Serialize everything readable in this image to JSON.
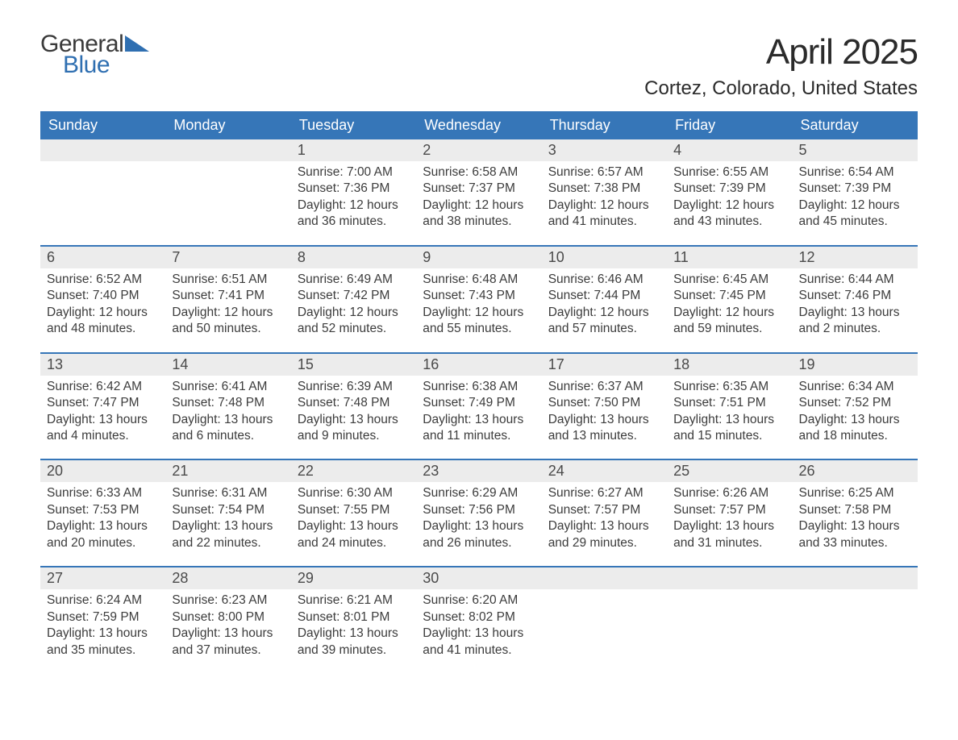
{
  "logo": {
    "word1": "General",
    "word2": "Blue",
    "accent_color": "#2f6fb1",
    "text_color": "#3a3a3a"
  },
  "title": "April 2025",
  "location": "Cortez, Colorado, United States",
  "colors": {
    "header_bg": "#3676b8",
    "header_text": "#ffffff",
    "daynum_bg": "#ececec",
    "week_divider": "#3676b8",
    "body_text": "#3c3c3c",
    "page_bg": "#ffffff"
  },
  "typography": {
    "month_title_fontsize": 44,
    "location_fontsize": 24,
    "dow_fontsize": 18,
    "daynum_fontsize": 18,
    "body_fontsize": 15.5
  },
  "days_of_week": [
    "Sunday",
    "Monday",
    "Tuesday",
    "Wednesday",
    "Thursday",
    "Friday",
    "Saturday"
  ],
  "weeks": [
    [
      {
        "n": "",
        "sunrise": "",
        "sunset": "",
        "daylight": ""
      },
      {
        "n": "",
        "sunrise": "",
        "sunset": "",
        "daylight": ""
      },
      {
        "n": "1",
        "sunrise": "Sunrise: 7:00 AM",
        "sunset": "Sunset: 7:36 PM",
        "daylight": "Daylight: 12 hours and 36 minutes."
      },
      {
        "n": "2",
        "sunrise": "Sunrise: 6:58 AM",
        "sunset": "Sunset: 7:37 PM",
        "daylight": "Daylight: 12 hours and 38 minutes."
      },
      {
        "n": "3",
        "sunrise": "Sunrise: 6:57 AM",
        "sunset": "Sunset: 7:38 PM",
        "daylight": "Daylight: 12 hours and 41 minutes."
      },
      {
        "n": "4",
        "sunrise": "Sunrise: 6:55 AM",
        "sunset": "Sunset: 7:39 PM",
        "daylight": "Daylight: 12 hours and 43 minutes."
      },
      {
        "n": "5",
        "sunrise": "Sunrise: 6:54 AM",
        "sunset": "Sunset: 7:39 PM",
        "daylight": "Daylight: 12 hours and 45 minutes."
      }
    ],
    [
      {
        "n": "6",
        "sunrise": "Sunrise: 6:52 AM",
        "sunset": "Sunset: 7:40 PM",
        "daylight": "Daylight: 12 hours and 48 minutes."
      },
      {
        "n": "7",
        "sunrise": "Sunrise: 6:51 AM",
        "sunset": "Sunset: 7:41 PM",
        "daylight": "Daylight: 12 hours and 50 minutes."
      },
      {
        "n": "8",
        "sunrise": "Sunrise: 6:49 AM",
        "sunset": "Sunset: 7:42 PM",
        "daylight": "Daylight: 12 hours and 52 minutes."
      },
      {
        "n": "9",
        "sunrise": "Sunrise: 6:48 AM",
        "sunset": "Sunset: 7:43 PM",
        "daylight": "Daylight: 12 hours and 55 minutes."
      },
      {
        "n": "10",
        "sunrise": "Sunrise: 6:46 AM",
        "sunset": "Sunset: 7:44 PM",
        "daylight": "Daylight: 12 hours and 57 minutes."
      },
      {
        "n": "11",
        "sunrise": "Sunrise: 6:45 AM",
        "sunset": "Sunset: 7:45 PM",
        "daylight": "Daylight: 12 hours and 59 minutes."
      },
      {
        "n": "12",
        "sunrise": "Sunrise: 6:44 AM",
        "sunset": "Sunset: 7:46 PM",
        "daylight": "Daylight: 13 hours and 2 minutes."
      }
    ],
    [
      {
        "n": "13",
        "sunrise": "Sunrise: 6:42 AM",
        "sunset": "Sunset: 7:47 PM",
        "daylight": "Daylight: 13 hours and 4 minutes."
      },
      {
        "n": "14",
        "sunrise": "Sunrise: 6:41 AM",
        "sunset": "Sunset: 7:48 PM",
        "daylight": "Daylight: 13 hours and 6 minutes."
      },
      {
        "n": "15",
        "sunrise": "Sunrise: 6:39 AM",
        "sunset": "Sunset: 7:48 PM",
        "daylight": "Daylight: 13 hours and 9 minutes."
      },
      {
        "n": "16",
        "sunrise": "Sunrise: 6:38 AM",
        "sunset": "Sunset: 7:49 PM",
        "daylight": "Daylight: 13 hours and 11 minutes."
      },
      {
        "n": "17",
        "sunrise": "Sunrise: 6:37 AM",
        "sunset": "Sunset: 7:50 PM",
        "daylight": "Daylight: 13 hours and 13 minutes."
      },
      {
        "n": "18",
        "sunrise": "Sunrise: 6:35 AM",
        "sunset": "Sunset: 7:51 PM",
        "daylight": "Daylight: 13 hours and 15 minutes."
      },
      {
        "n": "19",
        "sunrise": "Sunrise: 6:34 AM",
        "sunset": "Sunset: 7:52 PM",
        "daylight": "Daylight: 13 hours and 18 minutes."
      }
    ],
    [
      {
        "n": "20",
        "sunrise": "Sunrise: 6:33 AM",
        "sunset": "Sunset: 7:53 PM",
        "daylight": "Daylight: 13 hours and 20 minutes."
      },
      {
        "n": "21",
        "sunrise": "Sunrise: 6:31 AM",
        "sunset": "Sunset: 7:54 PM",
        "daylight": "Daylight: 13 hours and 22 minutes."
      },
      {
        "n": "22",
        "sunrise": "Sunrise: 6:30 AM",
        "sunset": "Sunset: 7:55 PM",
        "daylight": "Daylight: 13 hours and 24 minutes."
      },
      {
        "n": "23",
        "sunrise": "Sunrise: 6:29 AM",
        "sunset": "Sunset: 7:56 PM",
        "daylight": "Daylight: 13 hours and 26 minutes."
      },
      {
        "n": "24",
        "sunrise": "Sunrise: 6:27 AM",
        "sunset": "Sunset: 7:57 PM",
        "daylight": "Daylight: 13 hours and 29 minutes."
      },
      {
        "n": "25",
        "sunrise": "Sunrise: 6:26 AM",
        "sunset": "Sunset: 7:57 PM",
        "daylight": "Daylight: 13 hours and 31 minutes."
      },
      {
        "n": "26",
        "sunrise": "Sunrise: 6:25 AM",
        "sunset": "Sunset: 7:58 PM",
        "daylight": "Daylight: 13 hours and 33 minutes."
      }
    ],
    [
      {
        "n": "27",
        "sunrise": "Sunrise: 6:24 AM",
        "sunset": "Sunset: 7:59 PM",
        "daylight": "Daylight: 13 hours and 35 minutes."
      },
      {
        "n": "28",
        "sunrise": "Sunrise: 6:23 AM",
        "sunset": "Sunset: 8:00 PM",
        "daylight": "Daylight: 13 hours and 37 minutes."
      },
      {
        "n": "29",
        "sunrise": "Sunrise: 6:21 AM",
        "sunset": "Sunset: 8:01 PM",
        "daylight": "Daylight: 13 hours and 39 minutes."
      },
      {
        "n": "30",
        "sunrise": "Sunrise: 6:20 AM",
        "sunset": "Sunset: 8:02 PM",
        "daylight": "Daylight: 13 hours and 41 minutes."
      },
      {
        "n": "",
        "sunrise": "",
        "sunset": "",
        "daylight": ""
      },
      {
        "n": "",
        "sunrise": "",
        "sunset": "",
        "daylight": ""
      },
      {
        "n": "",
        "sunrise": "",
        "sunset": "",
        "daylight": ""
      }
    ]
  ]
}
